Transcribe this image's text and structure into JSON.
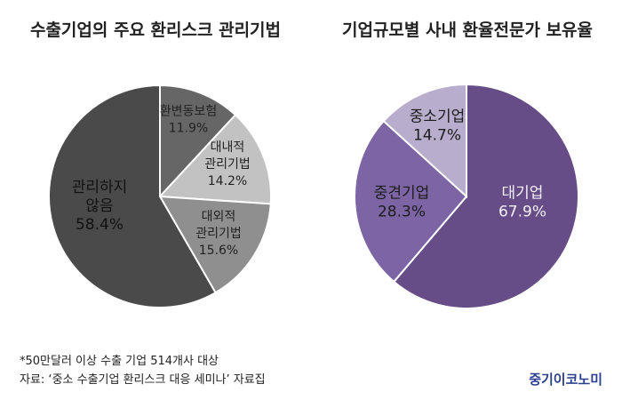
{
  "chart_data": [
    {
      "type": "pie",
      "title": "수출기업의 주요 환리스크 관리기법",
      "slices": [
        {
          "label_lines": [
            "환변동보험"
          ],
          "value": 11.9,
          "value_text": "11.9%",
          "color": "#666666",
          "text_color": "#222222"
        },
        {
          "label_lines": [
            "대내적",
            "관리기법"
          ],
          "value": 14.2,
          "value_text": "14.2%",
          "color": "#c2c2c2",
          "text_color": "#222222"
        },
        {
          "label_lines": [
            "대외적",
            "관리기법"
          ],
          "value": 15.6,
          "value_text": "15.6%",
          "color": "#8f8f8f",
          "text_color": "#222222"
        },
        {
          "label_lines": [
            "관리하지",
            "않음"
          ],
          "value": 58.4,
          "value_text": "58.4%",
          "color": "#4a4a4a",
          "text_color": "#111111"
        }
      ]
    },
    {
      "type": "pie",
      "title": "기업규모별 사내 환율전문가 보유율",
      "slices": [
        {
          "label_lines": [
            "대기업"
          ],
          "value": 67.9,
          "value_text": "67.9%",
          "color": "#674d87",
          "text_color": "#f4f0f8"
        },
        {
          "label_lines": [
            "중견기업"
          ],
          "value": 28.3,
          "value_text": "28.3%",
          "color": "#7c64a5",
          "text_color": "#1c1c1c"
        },
        {
          "label_lines": [
            "중소기업"
          ],
          "value": 14.7,
          "value_text": "14.7%",
          "color": "#b9adcd",
          "text_color": "#1c1c1c"
        }
      ]
    }
  ],
  "footnotes": {
    "line1": "*50만달러 이상 수출 기업 514개사 대상",
    "line2": "자료: ‘중소 수출기업 환리스크 대응 세미나’ 자료집"
  },
  "brand": "중기이코노미"
}
